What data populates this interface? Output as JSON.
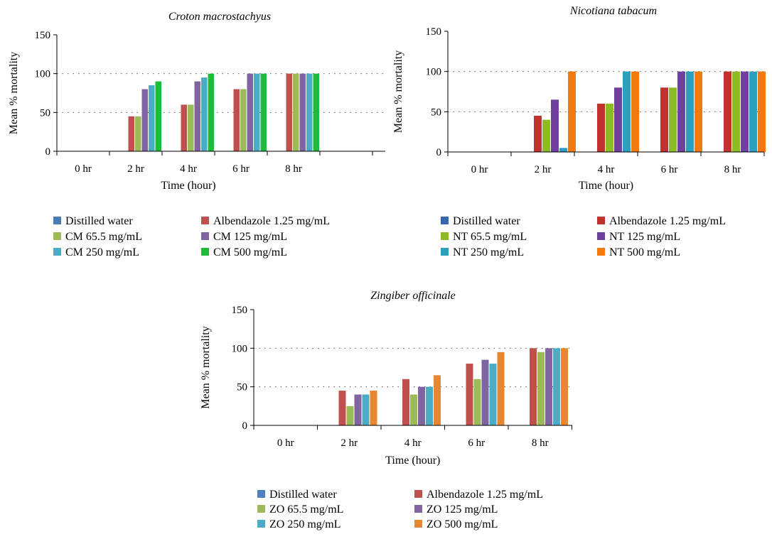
{
  "chart_data": [
    {
      "type": "bar",
      "title": "Croton macrostachyus",
      "xlabel": "Time (hour)",
      "ylabel": "Mean % mortality",
      "ylim": [
        0,
        150
      ],
      "yticks": [
        0,
        50,
        100,
        150
      ],
      "grid": "dotted horizontal",
      "legend_position": "bottom",
      "categories": [
        "0 hr",
        "2 hr",
        "4 hr",
        "6 hr",
        "8 hr"
      ],
      "series": [
        {
          "name": "Distilled water",
          "color": "#4a7bb7",
          "values": [
            0,
            0,
            0,
            0,
            0
          ]
        },
        {
          "name": "Albendazole 1.25 mg/mL",
          "color": "#c0504d",
          "values": [
            0,
            45,
            60,
            80,
            100
          ]
        },
        {
          "name": "CM 65.5 mg/mL",
          "color": "#9bbb59",
          "values": [
            0,
            45,
            60,
            80,
            100
          ]
        },
        {
          "name": "CM 125 mg/mL",
          "color": "#8064a2",
          "values": [
            0,
            80,
            90,
            100,
            100
          ]
        },
        {
          "name": "CM 250 mg/mL",
          "color": "#4bacc6",
          "values": [
            0,
            85,
            95,
            100,
            100
          ]
        },
        {
          "name": "CM 500 mg/mL",
          "color": "#1fbb3a",
          "values": [
            0,
            90,
            100,
            100,
            100
          ]
        }
      ]
    },
    {
      "type": "bar",
      "title": "Nicotiana tabacum",
      "xlabel": "Time (hour)",
      "ylabel": "Mean % mortality",
      "ylim": [
        0,
        150
      ],
      "yticks": [
        0,
        50,
        100,
        150
      ],
      "grid": "dotted horizontal",
      "legend_position": "bottom",
      "categories": [
        "0 hr",
        "2 hr",
        "4 hr",
        "6 hr",
        "8 hr"
      ],
      "series": [
        {
          "name": "Distilled water",
          "color": "#3a66b0",
          "values": [
            0,
            0,
            0,
            0,
            0
          ]
        },
        {
          "name": "Albendazole 1.25 mg/mL",
          "color": "#c0322d",
          "values": [
            0,
            45,
            60,
            80,
            100
          ]
        },
        {
          "name": "NT 65.5 mg/mL",
          "color": "#8dbb22",
          "values": [
            0,
            40,
            60,
            80,
            100
          ]
        },
        {
          "name": "NT 125 mg/mL",
          "color": "#7040a0",
          "values": [
            0,
            65,
            80,
            100,
            100
          ]
        },
        {
          "name": "NT 250 mg/mL",
          "color": "#2aa0be",
          "values": [
            0,
            5,
            100,
            100,
            100
          ]
        },
        {
          "name": "NT 500 mg/mL",
          "color": "#f07a10",
          "values": [
            0,
            100,
            100,
            100,
            100
          ]
        }
      ]
    },
    {
      "type": "bar",
      "title": "Zingiber officinale",
      "xlabel": "Time (hour)",
      "ylabel": "Mean % mortality",
      "ylim": [
        0,
        150
      ],
      "yticks": [
        0,
        50,
        100,
        150
      ],
      "grid": "dotted horizontal",
      "legend_position": "bottom",
      "categories": [
        "0 hr",
        "2 hr",
        "4 hr",
        "6 hr",
        "8 hr"
      ],
      "series": [
        {
          "name": "Distilled water",
          "color": "#4f81bd",
          "values": [
            0,
            0,
            0,
            0,
            0
          ]
        },
        {
          "name": "Albendazole 1.25 mg/mL",
          "color": "#c0504d",
          "values": [
            0,
            45,
            60,
            80,
            100
          ]
        },
        {
          "name": "ZO 65.5 mg/mL",
          "color": "#9bbb59",
          "values": [
            0,
            25,
            40,
            60,
            95
          ]
        },
        {
          "name": "ZO 125 mg/mL",
          "color": "#8064a2",
          "values": [
            0,
            40,
            50,
            85,
            100
          ]
        },
        {
          "name": "ZO 250 mg/mL",
          "color": "#4bacc6",
          "values": [
            0,
            40,
            50,
            80,
            100
          ]
        },
        {
          "name": "ZO 500 mg/mL",
          "color": "#e8872f",
          "values": [
            0,
            45,
            65,
            95,
            100
          ]
        }
      ]
    }
  ]
}
